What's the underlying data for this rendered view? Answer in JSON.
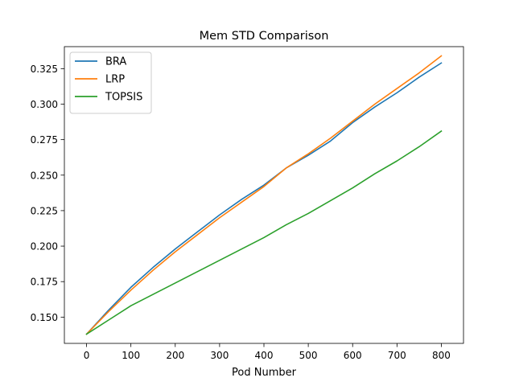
{
  "chart_data": {
    "type": "line",
    "title": "Mem STD Comparison",
    "xlabel": "Pod Number",
    "ylabel": "",
    "xlim": [
      -50,
      850
    ],
    "ylim": [
      0.1315,
      0.3405
    ],
    "xticks": [
      0,
      100,
      200,
      300,
      400,
      500,
      600,
      700,
      800
    ],
    "xtick_labels": [
      "0",
      "100",
      "200",
      "300",
      "400",
      "500",
      "600",
      "700",
      "800"
    ],
    "yticks": [
      0.15,
      0.175,
      0.2,
      0.225,
      0.25,
      0.275,
      0.3,
      0.325
    ],
    "ytick_labels": [
      "0.150",
      "0.175",
      "0.200",
      "0.225",
      "0.250",
      "0.275",
      "0.300",
      "0.325"
    ],
    "grid": false,
    "legend_position": "top-left",
    "series": [
      {
        "name": "BRA",
        "color": "#1f77b4",
        "x": [
          0,
          50,
          100,
          150,
          200,
          250,
          300,
          350,
          400,
          450,
          500,
          550,
          600,
          650,
          700,
          750,
          800
        ],
        "y": [
          0.138,
          0.155,
          0.171,
          0.185,
          0.198,
          0.21,
          0.222,
          0.233,
          0.243,
          0.255,
          0.264,
          0.274,
          0.287,
          0.298,
          0.308,
          0.319,
          0.329
        ]
      },
      {
        "name": "LRP",
        "color": "#ff7f0e",
        "x": [
          0,
          50,
          100,
          150,
          200,
          250,
          300,
          350,
          400,
          450,
          500,
          550,
          600,
          650,
          700,
          750,
          800
        ],
        "y": [
          0.138,
          0.154,
          0.169,
          0.183,
          0.196,
          0.208,
          0.22,
          0.231,
          0.242,
          0.255,
          0.265,
          0.276,
          0.288,
          0.3,
          0.311,
          0.322,
          0.334
        ]
      },
      {
        "name": "TOPSIS",
        "color": "#2ca02c",
        "x": [
          0,
          50,
          100,
          150,
          200,
          250,
          300,
          350,
          400,
          450,
          500,
          550,
          600,
          650,
          700,
          750,
          800
        ],
        "y": [
          0.138,
          0.148,
          0.158,
          0.166,
          0.174,
          0.182,
          0.19,
          0.198,
          0.206,
          0.215,
          0.223,
          0.232,
          0.241,
          0.251,
          0.26,
          0.27,
          0.281
        ]
      }
    ]
  }
}
